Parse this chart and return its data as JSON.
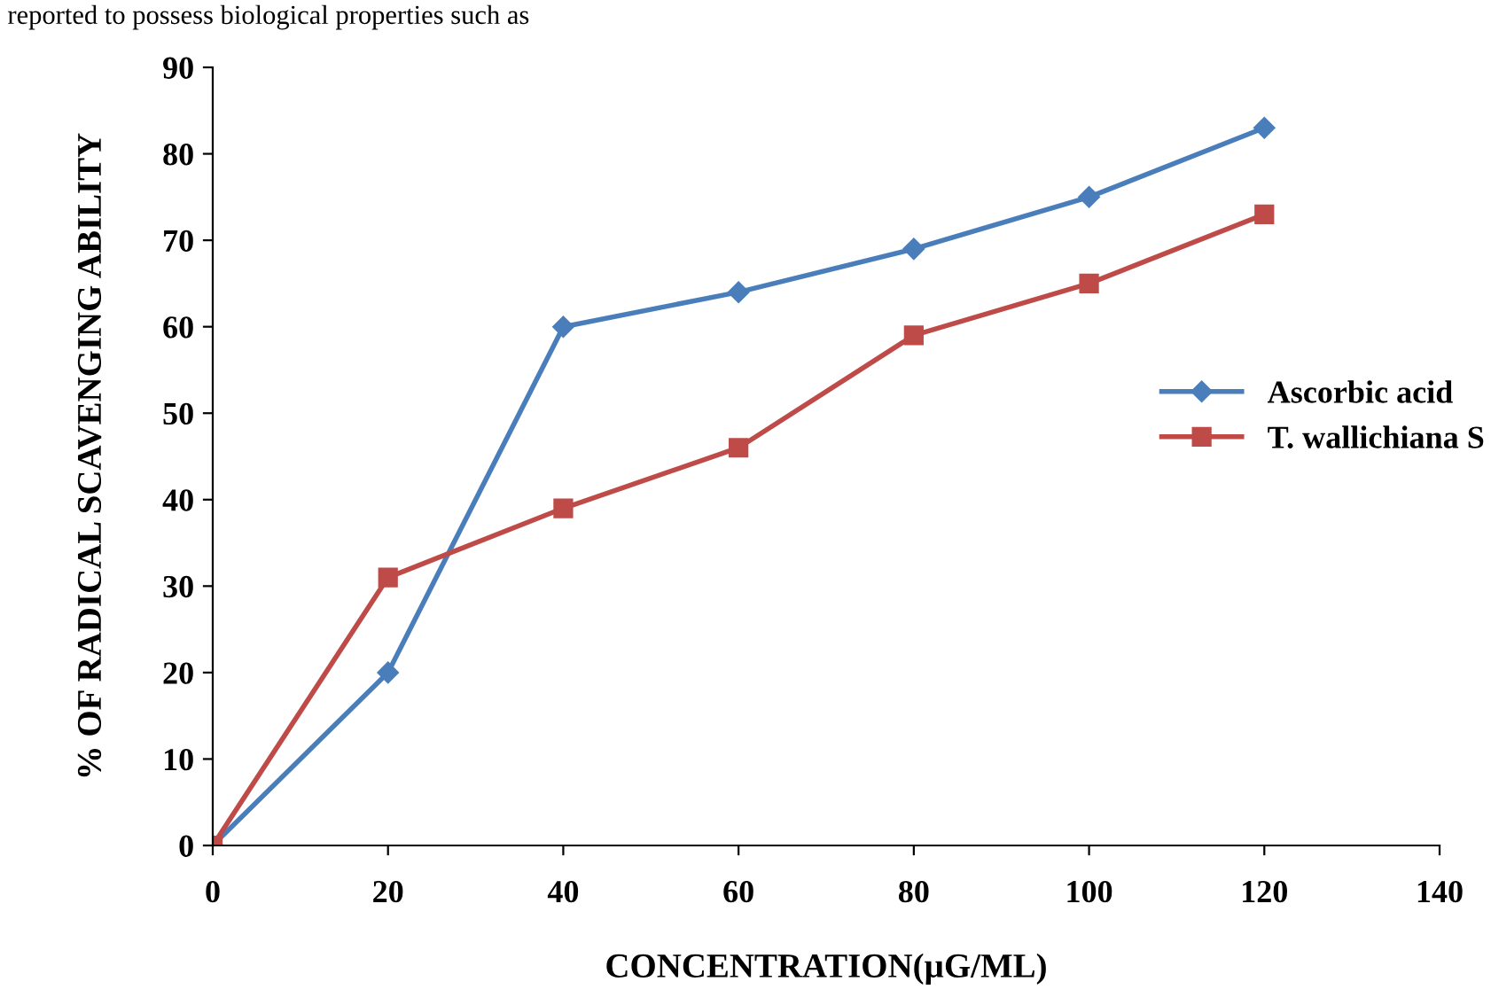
{
  "chart_data": {
    "type": "line",
    "xlabel": "CONCENTRATION(µG/ML)",
    "ylabel": "% OF RADICAL SCAVENGING ABILITY",
    "annotations": [
      "reported to possess biological properties such as"
    ],
    "x": [
      0,
      20,
      40,
      60,
      80,
      100,
      120
    ],
    "series": [
      {
        "name": "Ascorbic acid",
        "color": "#4a7ebb",
        "marker": "diamond",
        "values": [
          0,
          20,
          60,
          64,
          69,
          75,
          83
        ]
      },
      {
        "name": "T. wallichiana S",
        "color": "#be4b48",
        "marker": "square",
        "values": [
          0,
          31,
          39,
          46,
          59,
          65,
          73
        ]
      }
    ],
    "xlim": [
      0,
      140
    ],
    "xticks": [
      0,
      20,
      40,
      60,
      80,
      100,
      120,
      140
    ],
    "ylim": [
      0,
      90
    ],
    "yticks": [
      0,
      10,
      20,
      30,
      40,
      50,
      60,
      70,
      80,
      90
    ],
    "grid": false,
    "legend": "right",
    "line_style": "solid"
  }
}
